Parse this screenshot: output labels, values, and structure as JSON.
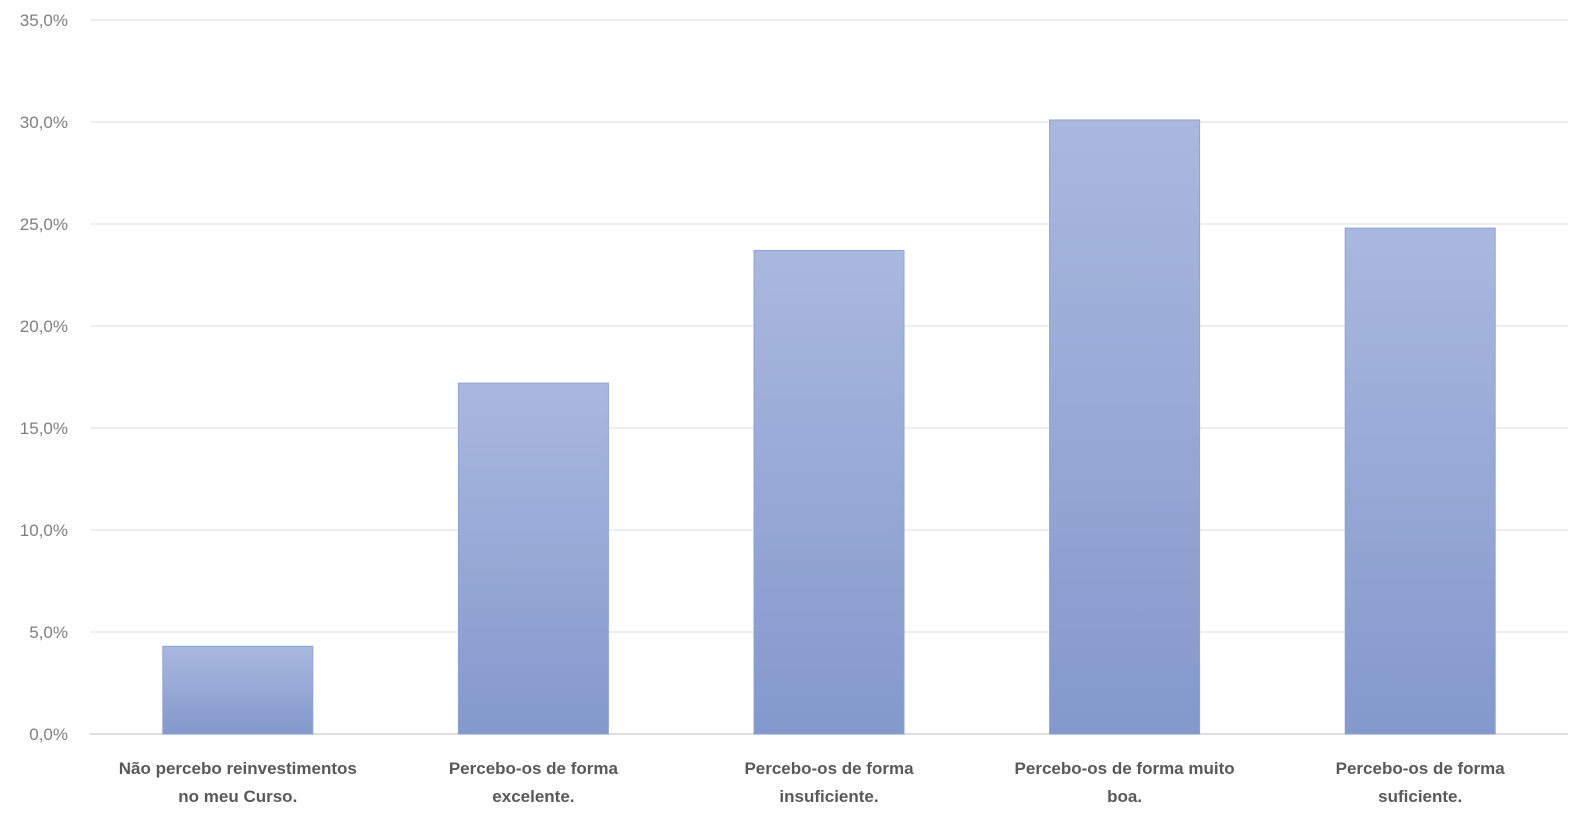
{
  "chart_data": {
    "type": "bar",
    "title": "",
    "xlabel": "",
    "ylabel": "",
    "categories": [
      [
        "Não percebo reinvestimentos",
        "no meu Curso."
      ],
      [
        "Percebo-os de forma",
        "excelente."
      ],
      [
        "Percebo-os de forma",
        "insuficiente."
      ],
      [
        "Percebo-os de forma muito",
        "boa."
      ],
      [
        "Percebo-os de forma",
        "suficiente."
      ]
    ],
    "values": [
      4.3,
      17.2,
      23.7,
      30.1,
      24.8
    ],
    "ylim": [
      0,
      35
    ],
    "yticks": [
      0,
      5,
      10,
      15,
      20,
      25,
      30,
      35
    ],
    "ytick_labels": [
      "0,0%",
      "5,0%",
      "10,0%",
      "15,0%",
      "20,0%",
      "25,0%",
      "30,0%",
      "35,0%"
    ],
    "grid": true,
    "legend": "none",
    "colors": {
      "bar_top": "#a9b8de",
      "bar_bottom": "#8399cc",
      "grid": "#e3e3e3",
      "text": "#595959"
    }
  }
}
